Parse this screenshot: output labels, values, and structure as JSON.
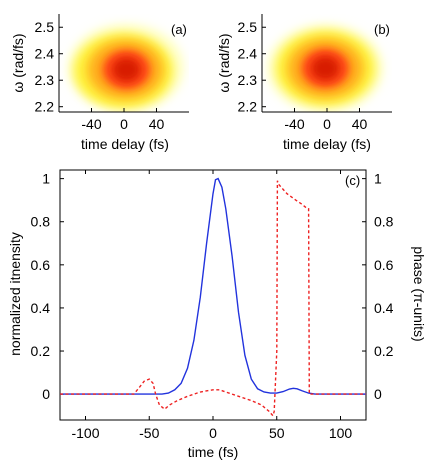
{
  "chart_data": [
    {
      "type": "heatmap",
      "panel_label": "(a)",
      "xlabel": "time delay (fs)",
      "ylabel": "ω (rad/fs)",
      "xlim": [
        -80,
        80
      ],
      "ylim": [
        2.18,
        2.55
      ],
      "xticks": [
        -40,
        0,
        40
      ],
      "yticks": [
        2.2,
        2.3,
        2.4,
        2.5
      ],
      "xtick_labels": [
        "-40",
        "0",
        "40"
      ],
      "ytick_labels": [
        "2.2",
        "2.3",
        "2.4",
        "2.5"
      ],
      "peak": {
        "x": 3,
        "y": 2.34
      },
      "colormap": [
        "#ffffc0",
        "#fff23a",
        "#ffb41e",
        "#ff5a12",
        "#dd1d00"
      ]
    },
    {
      "type": "heatmap",
      "panel_label": "(b)",
      "xlabel": "time delay (fs)",
      "ylabel": "ω (rad/fs)",
      "xlim": [
        -80,
        80
      ],
      "ylim": [
        2.18,
        2.55
      ],
      "xticks": [
        -40,
        0,
        40
      ],
      "yticks": [
        2.2,
        2.3,
        2.4,
        2.5
      ],
      "xtick_labels": [
        "-40",
        "0",
        "40"
      ],
      "ytick_labels": [
        "2.2",
        "2.3",
        "2.4",
        "2.5"
      ],
      "peak": {
        "x": -2,
        "y": 2.345
      },
      "colormap": [
        "#ffffc0",
        "#fff23a",
        "#ffb41e",
        "#ff5a12",
        "#dd1d00"
      ]
    },
    {
      "type": "line",
      "panel_label": "(c)",
      "xlabel": "time (fs)",
      "ylabel": "normalized itnensity",
      "y2label": "phase (π-units)",
      "xlim": [
        -120,
        120
      ],
      "ylim": [
        -0.12,
        1.04
      ],
      "y2lim": [
        -0.12,
        1.04
      ],
      "xticks": [
        -100,
        -50,
        0,
        50,
        100
      ],
      "yticks": [
        0,
        0.2,
        0.4,
        0.6,
        0.8,
        1
      ],
      "y2ticks": [
        0,
        0.2,
        0.4,
        0.6,
        0.8,
        1
      ],
      "xtick_labels": [
        "-100",
        "-50",
        "0",
        "50",
        "100"
      ],
      "ytick_labels": [
        "0",
        "0.2",
        "0.4",
        "0.6",
        "0.8",
        "1"
      ],
      "y2tick_labels": [
        "0",
        "0.2",
        "0.4",
        "0.6",
        "0.8",
        "1"
      ],
      "series": [
        {
          "axis": "left",
          "color": "#2233dd",
          "style": "solid",
          "points": [
            [
              -120,
              0
            ],
            [
              -40,
              0
            ],
            [
              -35,
              0.005
            ],
            [
              -30,
              0.02
            ],
            [
              -25,
              0.05
            ],
            [
              -20,
              0.12
            ],
            [
              -15,
              0.25
            ],
            [
              -10,
              0.45
            ],
            [
              -5,
              0.7
            ],
            [
              0,
              0.93
            ],
            [
              2,
              0.995
            ],
            [
              4,
              1.0
            ],
            [
              7,
              0.96
            ],
            [
              10,
              0.86
            ],
            [
              15,
              0.64
            ],
            [
              20,
              0.38
            ],
            [
              25,
              0.18
            ],
            [
              30,
              0.07
            ],
            [
              35,
              0.025
            ],
            [
              40,
              0.01
            ],
            [
              45,
              0.005
            ],
            [
              50,
              0.005
            ],
            [
              55,
              0.012
            ],
            [
              60,
              0.024
            ],
            [
              63,
              0.027
            ],
            [
              66,
              0.025
            ],
            [
              70,
              0.015
            ],
            [
              75,
              0.005
            ],
            [
              80,
              0
            ],
            [
              120,
              0
            ]
          ]
        },
        {
          "axis": "right",
          "color": "#ee2222",
          "style": "dashed",
          "points": [
            [
              -120,
              0
            ],
            [
              -62,
              0
            ],
            [
              -58,
              0.03
            ],
            [
              -54,
              0.06
            ],
            [
              -50,
              0.07
            ],
            [
              -47,
              0.05
            ],
            [
              -45,
              0.0
            ],
            [
              -42,
              -0.05
            ],
            [
              -38,
              -0.07
            ],
            [
              -34,
              -0.05
            ],
            [
              -28,
              -0.03
            ],
            [
              -20,
              -0.01
            ],
            [
              -10,
              0.01
            ],
            [
              0,
              0.02
            ],
            [
              5,
              0.02
            ],
            [
              10,
              0.01
            ],
            [
              20,
              -0.01
            ],
            [
              30,
              -0.03
            ],
            [
              38,
              -0.05
            ],
            [
              44,
              -0.08
            ],
            [
              47,
              -0.1
            ],
            [
              48,
              -0.08
            ],
            [
              50,
              0.2
            ],
            [
              50.5,
              0.99
            ],
            [
              52,
              0.97
            ],
            [
              58,
              0.93
            ],
            [
              65,
              0.9
            ],
            [
              70,
              0.88
            ],
            [
              74,
              0.86
            ],
            [
              75,
              0.86
            ],
            [
              75.5,
              0
            ],
            [
              120,
              0
            ]
          ]
        }
      ]
    }
  ]
}
